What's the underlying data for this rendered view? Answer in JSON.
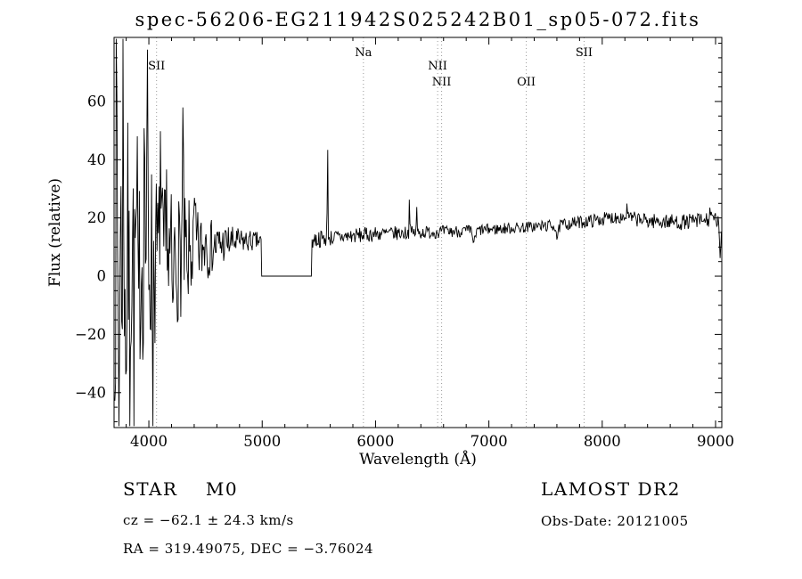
{
  "chart_data": {
    "type": "line",
    "title": "spec-56206-EG211942S025242B01_sp05-072.fits",
    "xlabel": "Wavelength (Å)",
    "ylabel": "Flux (relative)",
    "xlim": [
      3693,
      9055
    ],
    "ylim": [
      -52,
      82
    ],
    "grid": "off",
    "xticks": {
      "major": [
        4000,
        5000,
        6000,
        7000,
        8000,
        9000
      ],
      "labels": [
        "4000",
        "5000",
        "6000",
        "7000",
        "8000",
        "9000"
      ],
      "minor_step": 200
    },
    "yticks": {
      "major": [
        -40,
        -20,
        0,
        20,
        40,
        60
      ],
      "labels": [
        "−40",
        "−20",
        "0",
        "20",
        "40",
        "60"
      ],
      "minor_step": 5
    },
    "spectral_lines": [
      {
        "label": "SII",
        "wavelength": 4068,
        "row": 1
      },
      {
        "label": "Na",
        "wavelength": 5893,
        "row": 0
      },
      {
        "label": "NII",
        "wavelength": 6548,
        "row": 1
      },
      {
        "label": "NII",
        "wavelength": 6583,
        "row": 2
      },
      {
        "label": "OII",
        "wavelength": 7330,
        "row": 2
      },
      {
        "label": "SII",
        "wavelength": 7840,
        "row": 0
      }
    ],
    "masked_zero_region": [
      4995,
      5438
    ],
    "continuum_anchors": [
      [
        3700,
        8
      ],
      [
        3950,
        9
      ],
      [
        4050,
        6
      ],
      [
        4150,
        5
      ],
      [
        4250,
        6
      ],
      [
        4400,
        9
      ],
      [
        4550,
        10
      ],
      [
        4700,
        11.5
      ],
      [
        4850,
        12
      ],
      [
        4990,
        12
      ],
      [
        5440,
        12.5
      ],
      [
        5700,
        13.5
      ],
      [
        6000,
        14.5
      ],
      [
        6400,
        15
      ],
      [
        6800,
        15.5
      ],
      [
        7200,
        16.5
      ],
      [
        7600,
        17.5
      ],
      [
        7900,
        19
      ],
      [
        8150,
        20.5
      ],
      [
        8400,
        19
      ],
      [
        8700,
        18.5
      ],
      [
        9000,
        19.5
      ],
      [
        9055,
        17
      ]
    ],
    "noise_amplitude_anchors": [
      [
        3700,
        52
      ],
      [
        3780,
        48
      ],
      [
        3900,
        42
      ],
      [
        4000,
        36
      ],
      [
        4100,
        28
      ],
      [
        4200,
        24
      ],
      [
        4320,
        20
      ],
      [
        4450,
        13
      ],
      [
        4600,
        8
      ],
      [
        4800,
        4.5
      ],
      [
        4990,
        3
      ],
      [
        5440,
        3.2
      ],
      [
        5600,
        2.8
      ],
      [
        6000,
        2.6
      ],
      [
        6500,
        2.2
      ],
      [
        7000,
        2
      ],
      [
        7500,
        2
      ],
      [
        8000,
        2.3
      ],
      [
        8500,
        2.6
      ],
      [
        9055,
        2.8
      ]
    ],
    "spikes": [
      [
        3715,
        55,
        3
      ],
      [
        3735,
        -60,
        3
      ],
      [
        3772,
        52,
        3
      ],
      [
        3800,
        -55,
        3
      ],
      [
        3830,
        -50,
        3
      ],
      [
        3870,
        -52,
        3
      ],
      [
        3910,
        -48,
        3
      ],
      [
        3962,
        52,
        3
      ],
      [
        3988,
        55,
        3
      ],
      [
        4035,
        -42,
        3
      ],
      [
        4101,
        44,
        4
      ],
      [
        4160,
        25,
        4
      ],
      [
        4210,
        -30,
        4
      ],
      [
        4300,
        42,
        4
      ],
      [
        4340,
        -25,
        3
      ],
      [
        4405,
        14,
        4
      ],
      [
        4500,
        10,
        4
      ],
      [
        5577,
        30,
        3
      ],
      [
        6300,
        13,
        3
      ],
      [
        6363,
        8,
        3
      ],
      [
        6870,
        -4,
        12
      ],
      [
        7605,
        -4.5,
        10
      ],
      [
        8220,
        3,
        6
      ],
      [
        8950,
        4,
        4
      ],
      [
        9040,
        -14,
        5
      ]
    ],
    "noise_seed": 7,
    "sample_step": 6
  },
  "annotations": {
    "class_line": "STAR    M0",
    "survey": "LAMOST DR2",
    "cz_line": "cz = −62.1 ± 24.3 km/s",
    "obs_date_line": "Obs-Date: 20121005",
    "radec_line": "RA = 319.49075, DEC = −3.76024"
  }
}
